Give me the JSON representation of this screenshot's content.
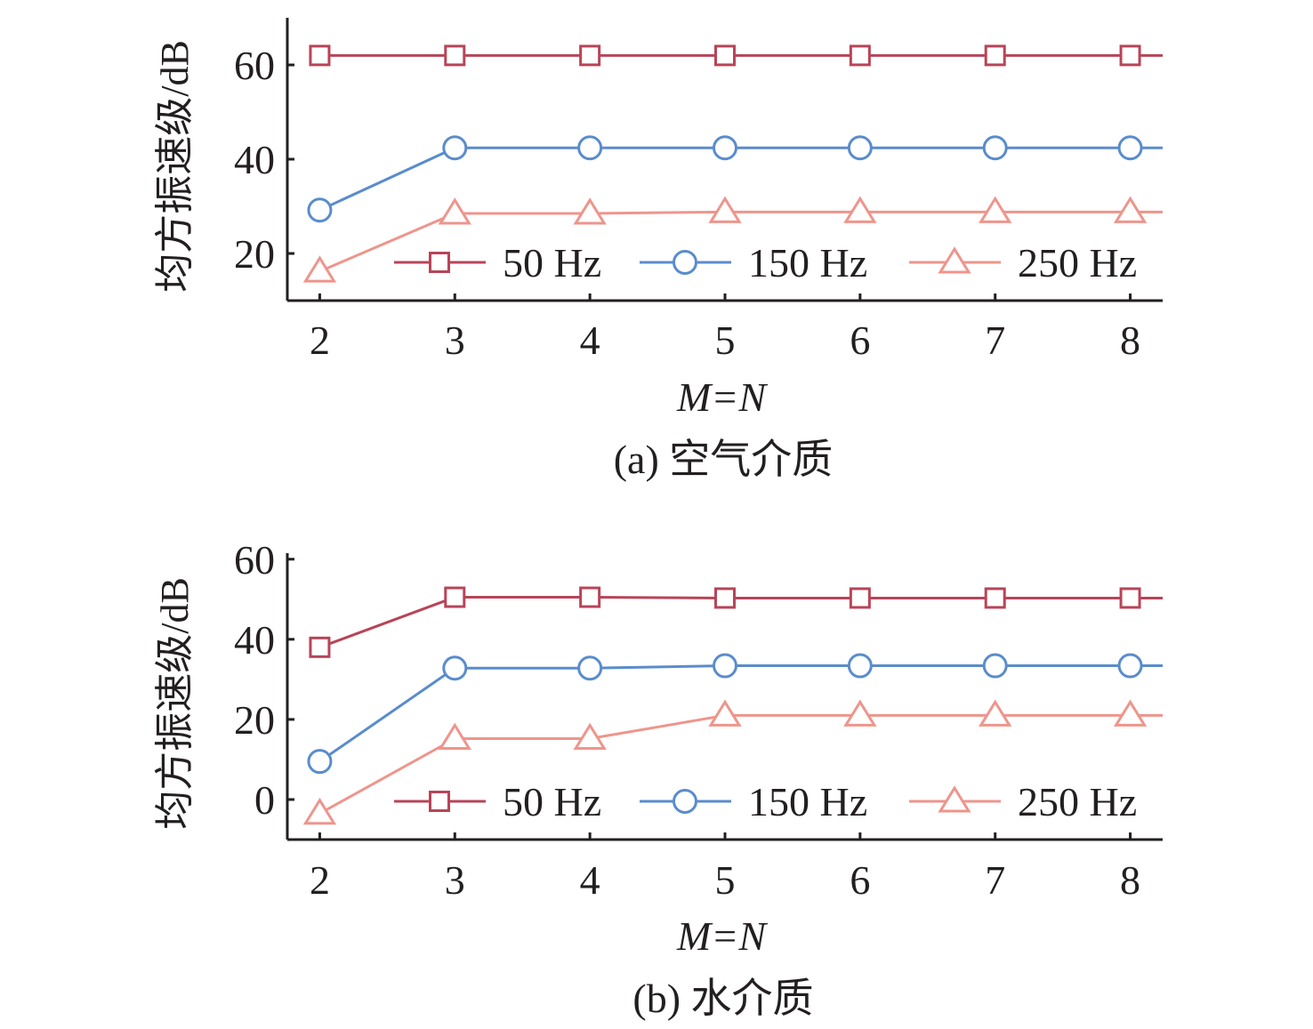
{
  "colors": {
    "50 Hz": "#b84458",
    "150 Hz": "#5a8ccc",
    "250 Hz": "#ee958c",
    "axis": "#231f20"
  },
  "chart_data": [
    {
      "type": "line",
      "caption": "(a) 空气介质",
      "xlabel": "M=N",
      "ylabel": "均方振速级/dB",
      "x": [
        2,
        3,
        4,
        5,
        6,
        7,
        8
      ],
      "xlim": [
        1.76,
        8.24
      ],
      "ylim": [
        10,
        70
      ],
      "yticks": [
        20,
        40,
        60
      ],
      "grid": false,
      "legend_position": "bottom-right",
      "series": [
        {
          "name": "50 Hz",
          "marker": "square",
          "values": [
            62,
            62,
            62,
            62,
            62,
            62,
            62
          ]
        },
        {
          "name": "150 Hz",
          "marker": "circle",
          "values": [
            29.2,
            42.4,
            42.4,
            42.4,
            42.4,
            42.4,
            42.4
          ]
        },
        {
          "name": "250 Hz",
          "marker": "triangle",
          "values": [
            16.2,
            28.5,
            28.5,
            28.8,
            28.8,
            28.8,
            28.8
          ]
        }
      ]
    },
    {
      "type": "line",
      "caption": "(b) 水介质",
      "xlabel": "M=N",
      "ylabel": "均方振速级/dB",
      "x": [
        2,
        3,
        4,
        5,
        6,
        7,
        8
      ],
      "xlim": [
        1.76,
        8.24
      ],
      "ylim": [
        -10,
        61.5
      ],
      "yticks": [
        0,
        20,
        40,
        60
      ],
      "grid": false,
      "legend_position": "bottom-right",
      "series": [
        {
          "name": "50 Hz",
          "marker": "square",
          "values": [
            38,
            50.5,
            50.5,
            50.3,
            50.3,
            50.3,
            50.3
          ]
        },
        {
          "name": "150 Hz",
          "marker": "circle",
          "values": [
            9.5,
            32.8,
            32.8,
            33.4,
            33.4,
            33.4,
            33.4
          ]
        },
        {
          "name": "250 Hz",
          "marker": "triangle",
          "values": [
            -3.5,
            15.2,
            15.2,
            21,
            21,
            21,
            21
          ]
        }
      ]
    }
  ]
}
